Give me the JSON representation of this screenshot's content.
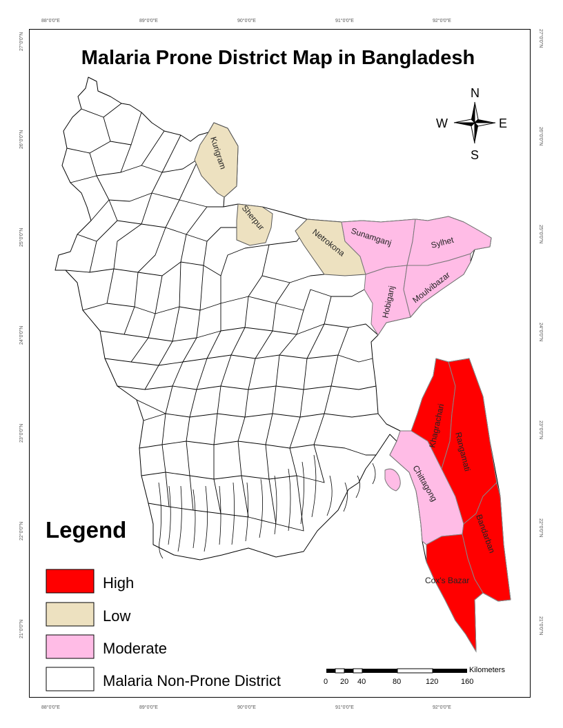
{
  "title": "Malaria Prone District Map in Bangladesh",
  "colors": {
    "high": "#ff0000",
    "low": "#ede1c0",
    "moderate": "#ffbce6",
    "non_prone": "#ffffff",
    "outline": "#000000"
  },
  "graticule": {
    "longitudes": [
      "88°0'0\"E",
      "89°0'0\"E",
      "90°0'0\"E",
      "91°0'0\"E",
      "92°0'0\"E"
    ],
    "latitudes": [
      "27°0'0\"N",
      "26°0'0\"N",
      "25°0'0\"N",
      "24°0'0\"N",
      "23°0'0\"N",
      "22°0'0\"N",
      "21°0'0\"N"
    ]
  },
  "compass": {
    "north": "N",
    "south": "S",
    "east": "E",
    "west": "W"
  },
  "districts": {
    "kurigram": "Kurigram",
    "sherpur": "Sherpur",
    "netrokona": "Netrokona",
    "sunamganj": "Sunamganj",
    "sylhet": "Sylhet",
    "hobiganj": "Hobiganj",
    "moulvibazar": "Moulvibazar",
    "khagrachari": "Khagrachari",
    "rangamati": "Rangamati",
    "chittagong": "Chittagong",
    "bandarban": "Bandarban",
    "coxs_bazar": "Cox's Bazar"
  },
  "legend": {
    "title": "Legend",
    "items": [
      {
        "label": "High",
        "color": "#ff0000"
      },
      {
        "label": "Low",
        "color": "#ede1c0"
      },
      {
        "label": "Moderate",
        "color": "#ffbce6"
      },
      {
        "label": "Malaria Non-Prone District",
        "color": "#ffffff"
      }
    ]
  },
  "scale_bar": {
    "unit": "Kilometers",
    "ticks": [
      "0",
      "20",
      "40",
      "80",
      "120",
      "160"
    ]
  }
}
